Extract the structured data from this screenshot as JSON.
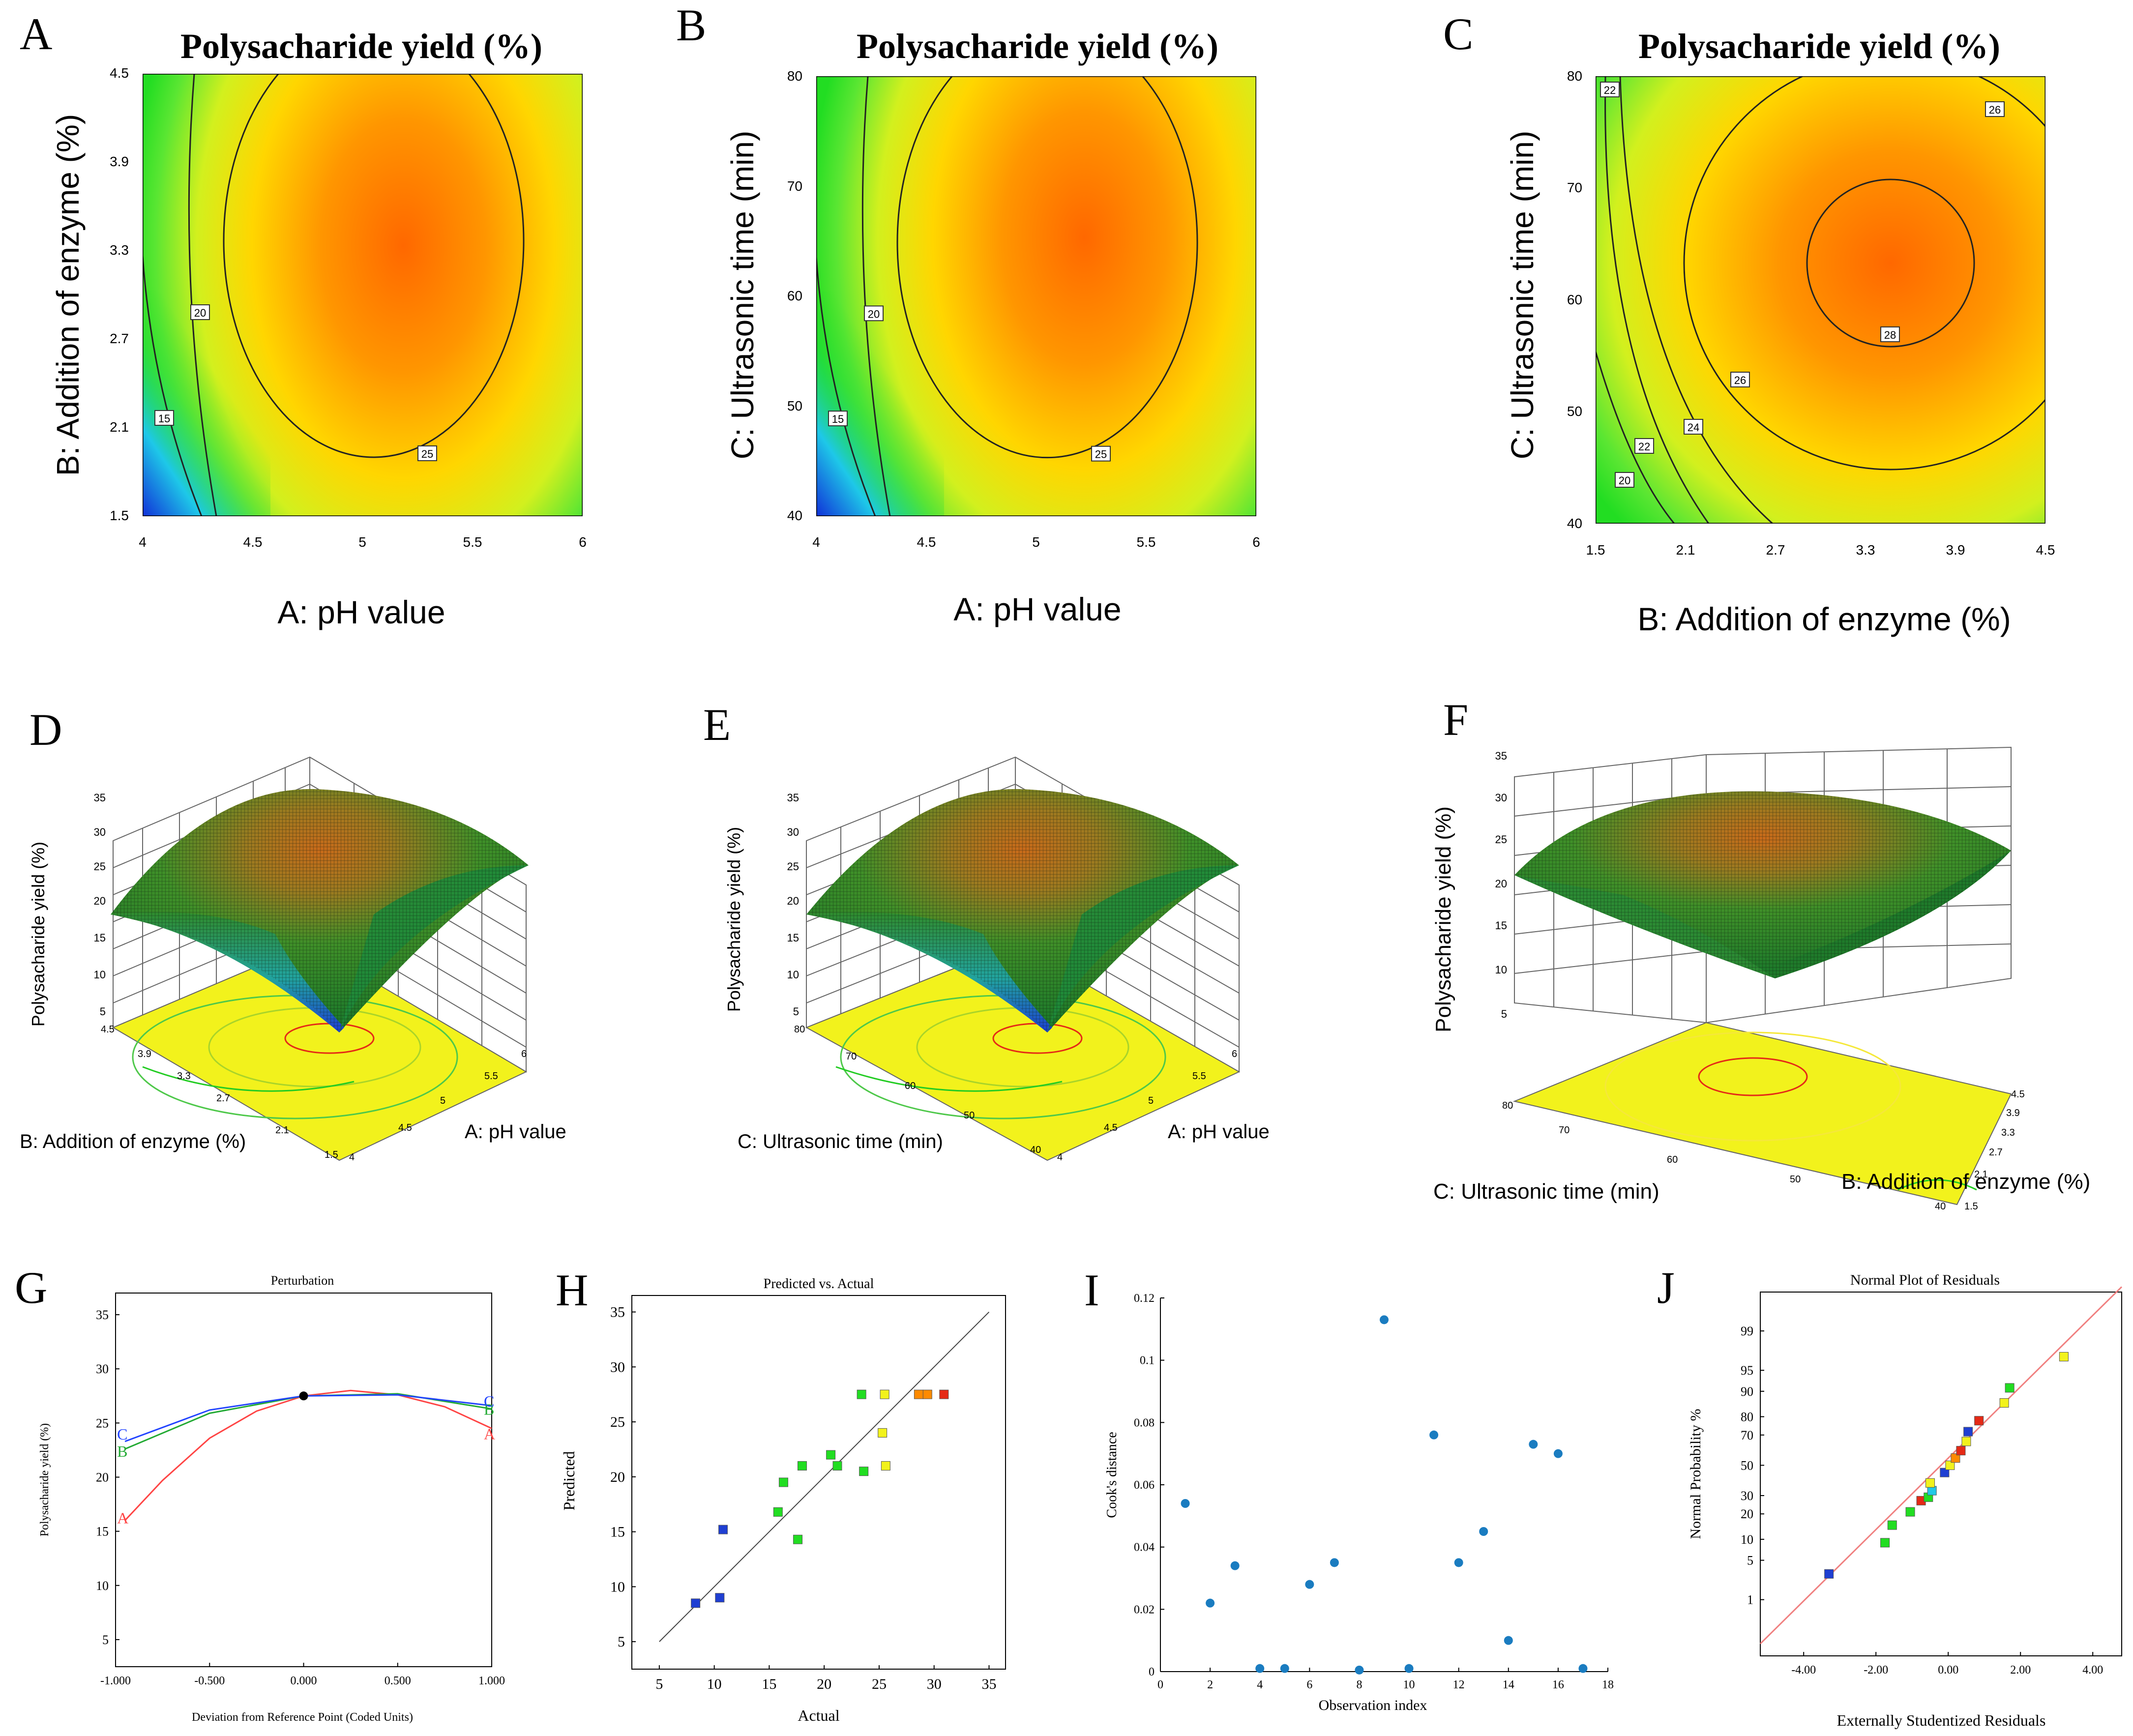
{
  "colors": {
    "blue": "#1f3fd2",
    "cyan": "#22c8e6",
    "green": "#22dd22",
    "yellow": "#f2f21c",
    "orange": "#ff8a00",
    "deep_orange": "#ff6a00",
    "red": "#e52a16",
    "contour": "#222222",
    "pert_A": "#ff4444",
    "pert_B": "#22aa33",
    "pert_C": "#2244ff",
    "cook_dot": "#1a7cc0",
    "normal_line": "#f08080"
  },
  "chart_data": [
    {
      "id": "A",
      "type": "contour",
      "panel_label": "A",
      "title": "Polysacharide yield (%)",
      "xlabel": "A: pH value",
      "ylabel": "B: Addition of enzyme (%)",
      "xlim": [
        4,
        6
      ],
      "ylim": [
        1.5,
        4.5
      ],
      "xticks": [
        "4",
        "4.5",
        "5",
        "5.5",
        "6"
      ],
      "yticks": [
        "1.5",
        "2.1",
        "2.7",
        "3.3",
        "3.9",
        "4.5"
      ],
      "contour_labels": [
        "15",
        "20",
        "25"
      ]
    },
    {
      "id": "B",
      "type": "contour",
      "panel_label": "B",
      "title": "Polysacharide yield (%)",
      "xlabel": "A: pH value",
      "ylabel": "C: Ultrasonic time (min)",
      "xlim": [
        4,
        6
      ],
      "ylim": [
        40,
        80
      ],
      "xticks": [
        "4",
        "4.5",
        "5",
        "5.5",
        "6"
      ],
      "yticks": [
        "40",
        "50",
        "60",
        "70",
        "80"
      ],
      "contour_labels": [
        "15",
        "20",
        "25"
      ]
    },
    {
      "id": "C",
      "type": "contour",
      "panel_label": "C",
      "title": "Polysacharide yield (%)",
      "xlabel": "B: Addition of enzyme (%)",
      "ylabel": "C: Ultrasonic time (min)",
      "xlim": [
        1.5,
        4.5
      ],
      "ylim": [
        40,
        80
      ],
      "xticks": [
        "1.5",
        "2.1",
        "2.7",
        "3.3",
        "3.9",
        "4.5"
      ],
      "yticks": [
        "40",
        "50",
        "60",
        "70",
        "80"
      ],
      "contour_labels": [
        "20",
        "22",
        "22",
        "24",
        "26",
        "26",
        "28"
      ]
    },
    {
      "id": "D",
      "type": "surface3d",
      "panel_label": "D",
      "zlabel": "Polysacharide yield (%)",
      "zticks": [
        "5",
        "10",
        "15",
        "20",
        "25",
        "30",
        "35"
      ],
      "left_axis_label": "B: Addition of enzyme (%)",
      "left_ticks": [
        "4.5",
        "3.9",
        "3.3",
        "2.7",
        "2.1",
        "1.5"
      ],
      "right_axis_label": "A: pH value",
      "right_ticks": [
        "4",
        "4.5",
        "5",
        "5.5",
        "6"
      ]
    },
    {
      "id": "E",
      "type": "surface3d",
      "panel_label": "E",
      "zlabel": "Polysacharide yield (%)",
      "zticks": [
        "5",
        "10",
        "15",
        "20",
        "25",
        "30",
        "35"
      ],
      "left_axis_label": "C: Ultrasonic time (min)",
      "left_ticks": [
        "80",
        "70",
        "60",
        "50",
        "40"
      ],
      "right_axis_label": "A: pH value",
      "right_ticks": [
        "4",
        "4.5",
        "5",
        "5.5",
        "6"
      ]
    },
    {
      "id": "F",
      "type": "surface3d",
      "panel_label": "F",
      "zlabel": "Polysacharide yield (%)",
      "zticks": [
        "5",
        "10",
        "15",
        "20",
        "25",
        "30",
        "35"
      ],
      "left_axis_label": "C: Ultrasonic time (min)",
      "left_ticks": [
        "80",
        "70",
        "60",
        "50",
        "40"
      ],
      "right_axis_label": "B: Addition of enzyme (%)",
      "right_ticks": [
        "1.5",
        "2.1",
        "2.7",
        "3.3",
        "3.9",
        "4.5"
      ]
    },
    {
      "id": "G",
      "type": "line",
      "panel_label": "G",
      "title": "Perturbation",
      "xlabel": "Deviation from Reference Point (Coded Units)",
      "ylabel": "Polysacharide yield (%)",
      "xlim": [
        -1,
        1
      ],
      "ylim": [
        2.5,
        37
      ],
      "xticks": [
        -1,
        -0.5,
        0,
        0.5,
        1
      ],
      "xtick_labels": [
        "-1.000",
        "-0.500",
        "0.000",
        "0.500",
        "1.000"
      ],
      "yticks": [
        5,
        10,
        15,
        20,
        25,
        30,
        35
      ],
      "series": [
        {
          "name": "A",
          "x": [
            -0.95,
            -0.75,
            -0.5,
            -0.25,
            0,
            0.25,
            0.5,
            0.75,
            1.0
          ],
          "y": [
            16.0,
            19.7,
            23.6,
            26.1,
            27.5,
            28.0,
            27.6,
            26.5,
            24.5
          ]
        },
        {
          "name": "B",
          "x": [
            -0.95,
            -0.5,
            0,
            0.5,
            1.0
          ],
          "y": [
            22.6,
            25.9,
            27.5,
            27.7,
            26.3
          ]
        },
        {
          "name": "C",
          "x": [
            -0.95,
            -0.5,
            0,
            0.5,
            1.0
          ],
          "y": [
            23.3,
            26.2,
            27.5,
            27.6,
            26.6
          ]
        }
      ],
      "center_point": [
        0,
        27.5
      ],
      "series_labels": [
        "A",
        "A",
        "B",
        "B",
        "C",
        "C"
      ]
    },
    {
      "id": "H",
      "type": "scatter",
      "panel_label": "H",
      "title": "Predicted vs. Actual",
      "xlabel": "Actual",
      "ylabel": "Predicted",
      "xlim": [
        2.5,
        36.5
      ],
      "ylim": [
        2.5,
        36.5
      ],
      "xticks": [
        5,
        10,
        15,
        20,
        25,
        30,
        35
      ],
      "yticks": [
        5,
        10,
        15,
        20,
        25,
        30,
        35
      ],
      "points": [
        {
          "x": 8.3,
          "y": 8.5,
          "c": "blue"
        },
        {
          "x": 10.5,
          "y": 9.0,
          "c": "blue"
        },
        {
          "x": 10.8,
          "y": 15.2,
          "c": "blue"
        },
        {
          "x": 15.8,
          "y": 16.8,
          "c": "green"
        },
        {
          "x": 16.3,
          "y": 19.5,
          "c": "green"
        },
        {
          "x": 17.6,
          "y": 14.3,
          "c": "green"
        },
        {
          "x": 18.0,
          "y": 21.0,
          "c": "green"
        },
        {
          "x": 20.6,
          "y": 22.0,
          "c": "green"
        },
        {
          "x": 21.2,
          "y": 21.0,
          "c": "green"
        },
        {
          "x": 23.4,
          "y": 27.5,
          "c": "green"
        },
        {
          "x": 23.6,
          "y": 20.5,
          "c": "green"
        },
        {
          "x": 25.3,
          "y": 24.0,
          "c": "yellow"
        },
        {
          "x": 25.5,
          "y": 27.5,
          "c": "yellow"
        },
        {
          "x": 25.6,
          "y": 21.0,
          "c": "yellow"
        },
        {
          "x": 28.6,
          "y": 27.5,
          "c": "orange"
        },
        {
          "x": 29.4,
          "y": 27.5,
          "c": "orange"
        },
        {
          "x": 30.9,
          "y": 27.5,
          "c": "red"
        }
      ],
      "line": {
        "x": [
          5,
          35
        ],
        "y": [
          5,
          35
        ]
      }
    },
    {
      "id": "I",
      "type": "scatter",
      "panel_label": "I",
      "xlabel": "Observation index",
      "ylabel": "Cook's distance",
      "xlim": [
        0,
        18
      ],
      "ylim": [
        0,
        0.12
      ],
      "xticks": [
        0,
        2,
        4,
        6,
        8,
        10,
        12,
        14,
        16,
        18
      ],
      "yticks": [
        0,
        0.02,
        0.04,
        0.06,
        0.08,
        0.1,
        0.12
      ],
      "ytick_labels": [
        "0",
        "0.02",
        "0.04",
        "0.06",
        "0.08",
        "0.1",
        "0.12"
      ],
      "points": [
        {
          "x": 1,
          "y": 0.054
        },
        {
          "x": 2,
          "y": 0.022
        },
        {
          "x": 3,
          "y": 0.034
        },
        {
          "x": 4,
          "y": 0.001
        },
        {
          "x": 5,
          "y": 0.001
        },
        {
          "x": 6,
          "y": 0.028
        },
        {
          "x": 7,
          "y": 0.035
        },
        {
          "x": 8,
          "y": 0.0005
        },
        {
          "x": 9,
          "y": 0.113
        },
        {
          "x": 10,
          "y": 0.001
        },
        {
          "x": 11,
          "y": 0.076
        },
        {
          "x": 12,
          "y": 0.035
        },
        {
          "x": 13,
          "y": 0.045
        },
        {
          "x": 14,
          "y": 0.01
        },
        {
          "x": 15,
          "y": 0.073
        },
        {
          "x": 16,
          "y": 0.07
        },
        {
          "x": 17,
          "y": 0.001
        }
      ]
    },
    {
      "id": "J",
      "type": "scatter",
      "panel_label": "J",
      "title": "Normal Plot of Residuals",
      "xlabel": "Externally Studentized Residuals",
      "ylabel": "Normal Probability %",
      "xlim": [
        -5.2,
        4.8
      ],
      "ylim": [
        -3.3,
        3.0
      ],
      "xticks": [
        -4,
        -2,
        0,
        2,
        4
      ],
      "xtick_labels": [
        "-4.00",
        "-2.00",
        "0.00",
        "2.00",
        "4.00"
      ],
      "yticks": [
        1,
        5,
        10,
        20,
        30,
        50,
        70,
        80,
        90,
        95,
        99
      ],
      "ytick_labels": [
        "1",
        "5",
        "10",
        "20",
        "30",
        "50",
        "70",
        "80",
        "90",
        "95",
        "99"
      ],
      "points": [
        {
          "x": -3.3,
          "p": 3,
          "c": "blue"
        },
        {
          "x": -1.75,
          "p": 9,
          "c": "green"
        },
        {
          "x": -1.55,
          "p": 15,
          "c": "green"
        },
        {
          "x": -1.05,
          "p": 21,
          "c": "green"
        },
        {
          "x": -0.75,
          "p": 27,
          "c": "red"
        },
        {
          "x": -0.55,
          "p": 29,
          "c": "green"
        },
        {
          "x": -0.45,
          "p": 33,
          "c": "cyan"
        },
        {
          "x": -0.5,
          "p": 38,
          "c": "yellow"
        },
        {
          "x": -0.1,
          "p": 45,
          "c": "blue"
        },
        {
          "x": 0.05,
          "p": 50,
          "c": "yellow"
        },
        {
          "x": 0.2,
          "p": 55,
          "c": "orange"
        },
        {
          "x": 0.35,
          "p": 60,
          "c": "red"
        },
        {
          "x": 0.5,
          "p": 66,
          "c": "yellow"
        },
        {
          "x": 0.55,
          "p": 72,
          "c": "blue"
        },
        {
          "x": 0.85,
          "p": 78,
          "c": "red"
        },
        {
          "x": 1.55,
          "p": 86,
          "c": "yellow"
        },
        {
          "x": 1.7,
          "p": 91,
          "c": "green"
        },
        {
          "x": 3.2,
          "p": 97,
          "c": "yellow"
        }
      ],
      "line": {
        "x": [
          -5.2,
          4.8
        ],
        "p": [
          0.1,
          99.9
        ]
      }
    }
  ]
}
